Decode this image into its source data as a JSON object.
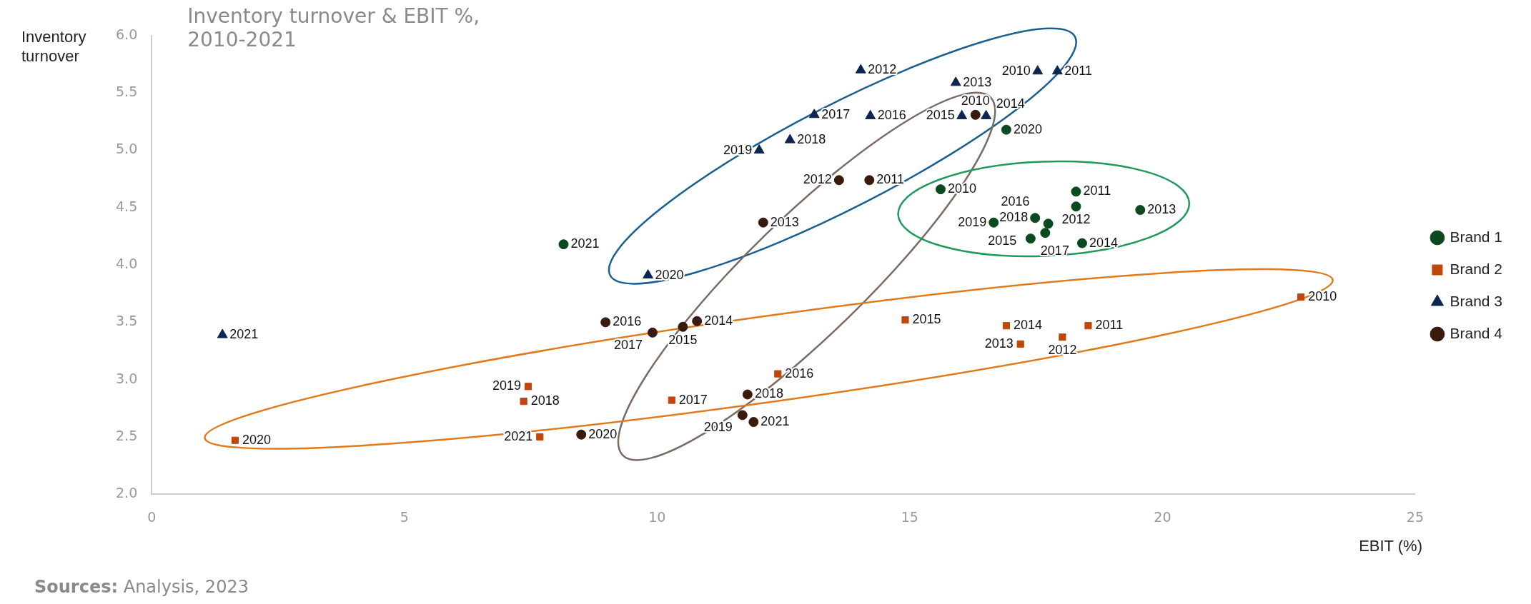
{
  "chart_data": {
    "type": "scatter",
    "title": "Inventory turnover & EBIT %, 2010-2021",
    "xlabel": "EBIT (%)",
    "ylabel": "Inventory turnover",
    "annotations": [
      "Sources: Analysis, 2023",
      {
        "text": "2010",
        "x": 15.61,
        "y": 4.66
      },
      {
        "text": "2011",
        "x": 18.29,
        "y": 4.64
      },
      {
        "text": "2012",
        "x": 18.29,
        "y": 4.51
      },
      {
        "text": "2013",
        "x": 19.56,
        "y": 4.48
      },
      {
        "text": "2014",
        "x": 18.41,
        "y": 4.19
      },
      {
        "text": "2015",
        "x": 17.68,
        "y": 4.28
      },
      {
        "text": "2016",
        "x": 17.74,
        "y": 4.36
      },
      {
        "text": "2017",
        "x": 17.39,
        "y": 4.23
      },
      {
        "text": "2018",
        "x": 17.48,
        "y": 4.41
      },
      {
        "text": "2019",
        "x": 16.66,
        "y": 4.37
      },
      {
        "text": "2020",
        "x": 16.91,
        "y": 5.18
      },
      {
        "text": "2021",
        "x": 8.15,
        "y": 4.18
      },
      {
        "text": "2010",
        "x": 22.74,
        "y": 3.72
      },
      {
        "text": "2011",
        "x": 18.53,
        "y": 3.47
      },
      {
        "text": "2012",
        "x": 18.02,
        "y": 3.37
      },
      {
        "text": "2013",
        "x": 17.19,
        "y": 3.31
      },
      {
        "text": "2014",
        "x": 16.91,
        "y": 3.47
      },
      {
        "text": "2015",
        "x": 14.91,
        "y": 3.52
      },
      {
        "text": "2016",
        "x": 12.39,
        "y": 3.05
      },
      {
        "text": "2017",
        "x": 10.29,
        "y": 2.82
      },
      {
        "text": "2018",
        "x": 7.36,
        "y": 2.81
      },
      {
        "text": "2019",
        "x": 7.45,
        "y": 2.94
      },
      {
        "text": "2020",
        "x": 1.65,
        "y": 2.47
      },
      {
        "text": "2021",
        "x": 7.68,
        "y": 2.5
      },
      {
        "text": "2010",
        "x": 17.53,
        "y": 5.69
      },
      {
        "text": "2011",
        "x": 17.92,
        "y": 5.69
      },
      {
        "text": "2012",
        "x": 14.03,
        "y": 5.7
      },
      {
        "text": "2013",
        "x": 15.91,
        "y": 5.59
      },
      {
        "text": "2014",
        "x": 16.51,
        "y": 5.3
      },
      {
        "text": "2015",
        "x": 16.03,
        "y": 5.3
      },
      {
        "text": "2016",
        "x": 14.22,
        "y": 5.3
      },
      {
        "text": "2017",
        "x": 13.11,
        "y": 5.31
      },
      {
        "text": "2018",
        "x": 12.63,
        "y": 5.09
      },
      {
        "text": "2019",
        "x": 12.02,
        "y": 5.0
      },
      {
        "text": "2020",
        "x": 9.82,
        "y": 3.91
      },
      {
        "text": "2021",
        "x": 1.4,
        "y": 3.39
      },
      {
        "text": "2010",
        "x": 16.3,
        "y": 5.31
      },
      {
        "text": "2011",
        "x": 14.2,
        "y": 4.74
      },
      {
        "text": "2012",
        "x": 13.6,
        "y": 4.74
      },
      {
        "text": "2013",
        "x": 12.1,
        "y": 4.37
      },
      {
        "text": "2014",
        "x": 10.79,
        "y": 3.51
      },
      {
        "text": "2015",
        "x": 10.51,
        "y": 3.46
      },
      {
        "text": "2016",
        "x": 8.98,
        "y": 3.5
      },
      {
        "text": "2017",
        "x": 9.91,
        "y": 3.41
      },
      {
        "text": "2018",
        "x": 11.79,
        "y": 2.87
      },
      {
        "text": "2019",
        "x": 11.69,
        "y": 2.69
      },
      {
        "text": "2020",
        "x": 8.5,
        "y": 2.52
      },
      {
        "text": "2021",
        "x": 11.91,
        "y": 2.63
      }
    ],
    "xlim": [
      0,
      25
    ],
    "xticks": [
      0,
      5,
      10,
      15,
      20,
      25
    ],
    "ylim": [
      2,
      6
    ],
    "yticks": [
      {
        "value": 2,
        "label": "2.0"
      },
      {
        "value": 2.5,
        "label": "2.5"
      },
      {
        "value": 3,
        "label": "3.0"
      },
      {
        "value": 3.5,
        "label": "3.5"
      },
      {
        "value": 4,
        "label": "4.0"
      },
      {
        "value": 4.5,
        "label": "4.5"
      },
      {
        "value": 5,
        "label": "5.0"
      },
      {
        "value": 5.5,
        "label": "5.5"
      },
      {
        "value": 6,
        "label": "6.0"
      }
    ],
    "grid": false,
    "legend": "right",
    "series": [
      {
        "name": "Brand 1",
        "color": "#0b4a1e",
        "marker": "circle",
        "x": [
          15.61,
          18.29,
          18.29,
          19.56,
          18.41,
          17.68,
          17.74,
          17.39,
          17.48,
          16.66,
          16.91,
          8.15
        ],
        "values": [
          4.66,
          4.64,
          4.51,
          4.48,
          4.19,
          4.28,
          4.36,
          4.23,
          4.41,
          4.37,
          5.18,
          4.18
        ]
      },
      {
        "name": "Brand 2",
        "color": "#c0460a",
        "marker": "square",
        "x": [
          22.74,
          18.53,
          18.02,
          17.19,
          16.91,
          14.91,
          12.39,
          10.29,
          7.36,
          7.45,
          1.65,
          7.68
        ],
        "values": [
          3.72,
          3.47,
          3.37,
          3.31,
          3.47,
          3.52,
          3.05,
          2.82,
          2.81,
          2.94,
          2.47,
          2.5
        ]
      },
      {
        "name": "Brand 3",
        "color": "#0d2650",
        "marker": "triangle",
        "x": [
          17.53,
          17.92,
          14.03,
          15.91,
          16.51,
          16.03,
          14.22,
          13.11,
          12.63,
          12.02,
          9.82,
          1.4
        ],
        "values": [
          5.69,
          5.69,
          5.7,
          5.59,
          5.3,
          5.3,
          5.3,
          5.31,
          5.09,
          5.0,
          3.91,
          3.39
        ]
      },
      {
        "name": "Brand 4",
        "color": "#3a1a0c",
        "marker": "circle",
        "x": [
          16.3,
          14.2,
          13.6,
          12.1,
          10.79,
          10.51,
          8.98,
          9.91,
          11.79,
          11.69,
          8.5,
          11.91
        ],
        "values": [
          5.31,
          4.74,
          4.74,
          4.37,
          3.51,
          3.46,
          3.5,
          3.41,
          2.87,
          2.69,
          2.52,
          2.63
        ]
      }
    ]
  }
}
